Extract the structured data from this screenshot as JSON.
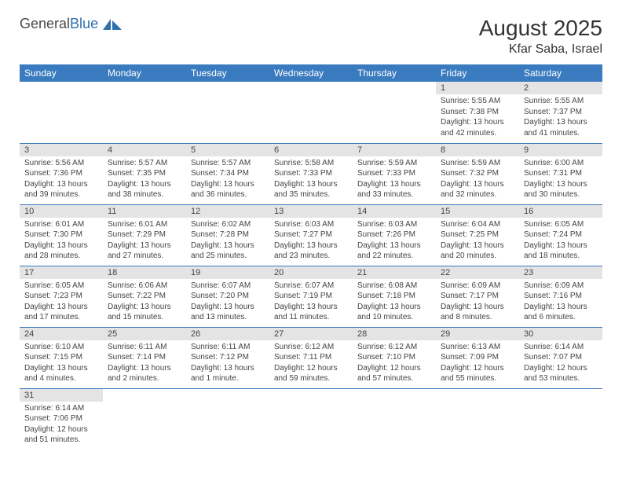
{
  "logo": {
    "brand_part1": "General",
    "brand_part2": "Blue"
  },
  "title": "August 2025",
  "location": "Kfar Saba, Israel",
  "colors": {
    "header_bg": "#3a7bbf",
    "header_text": "#ffffff",
    "daynum_bg": "#e4e4e4",
    "border": "#3a7bbf",
    "text": "#444444",
    "logo_gray": "#4a4a4a",
    "logo_blue": "#2f6fab"
  },
  "day_headers": [
    "Sunday",
    "Monday",
    "Tuesday",
    "Wednesday",
    "Thursday",
    "Friday",
    "Saturday"
  ],
  "weeks": [
    [
      {
        "n": "",
        "sr": "",
        "ss": "",
        "dl": ""
      },
      {
        "n": "",
        "sr": "",
        "ss": "",
        "dl": ""
      },
      {
        "n": "",
        "sr": "",
        "ss": "",
        "dl": ""
      },
      {
        "n": "",
        "sr": "",
        "ss": "",
        "dl": ""
      },
      {
        "n": "",
        "sr": "",
        "ss": "",
        "dl": ""
      },
      {
        "n": "1",
        "sr": "Sunrise: 5:55 AM",
        "ss": "Sunset: 7:38 PM",
        "dl": "Daylight: 13 hours and 42 minutes."
      },
      {
        "n": "2",
        "sr": "Sunrise: 5:55 AM",
        "ss": "Sunset: 7:37 PM",
        "dl": "Daylight: 13 hours and 41 minutes."
      }
    ],
    [
      {
        "n": "3",
        "sr": "Sunrise: 5:56 AM",
        "ss": "Sunset: 7:36 PM",
        "dl": "Daylight: 13 hours and 39 minutes."
      },
      {
        "n": "4",
        "sr": "Sunrise: 5:57 AM",
        "ss": "Sunset: 7:35 PM",
        "dl": "Daylight: 13 hours and 38 minutes."
      },
      {
        "n": "5",
        "sr": "Sunrise: 5:57 AM",
        "ss": "Sunset: 7:34 PM",
        "dl": "Daylight: 13 hours and 36 minutes."
      },
      {
        "n": "6",
        "sr": "Sunrise: 5:58 AM",
        "ss": "Sunset: 7:33 PM",
        "dl": "Daylight: 13 hours and 35 minutes."
      },
      {
        "n": "7",
        "sr": "Sunrise: 5:59 AM",
        "ss": "Sunset: 7:33 PM",
        "dl": "Daylight: 13 hours and 33 minutes."
      },
      {
        "n": "8",
        "sr": "Sunrise: 5:59 AM",
        "ss": "Sunset: 7:32 PM",
        "dl": "Daylight: 13 hours and 32 minutes."
      },
      {
        "n": "9",
        "sr": "Sunrise: 6:00 AM",
        "ss": "Sunset: 7:31 PM",
        "dl": "Daylight: 13 hours and 30 minutes."
      }
    ],
    [
      {
        "n": "10",
        "sr": "Sunrise: 6:01 AM",
        "ss": "Sunset: 7:30 PM",
        "dl": "Daylight: 13 hours and 28 minutes."
      },
      {
        "n": "11",
        "sr": "Sunrise: 6:01 AM",
        "ss": "Sunset: 7:29 PM",
        "dl": "Daylight: 13 hours and 27 minutes."
      },
      {
        "n": "12",
        "sr": "Sunrise: 6:02 AM",
        "ss": "Sunset: 7:28 PM",
        "dl": "Daylight: 13 hours and 25 minutes."
      },
      {
        "n": "13",
        "sr": "Sunrise: 6:03 AM",
        "ss": "Sunset: 7:27 PM",
        "dl": "Daylight: 13 hours and 23 minutes."
      },
      {
        "n": "14",
        "sr": "Sunrise: 6:03 AM",
        "ss": "Sunset: 7:26 PM",
        "dl": "Daylight: 13 hours and 22 minutes."
      },
      {
        "n": "15",
        "sr": "Sunrise: 6:04 AM",
        "ss": "Sunset: 7:25 PM",
        "dl": "Daylight: 13 hours and 20 minutes."
      },
      {
        "n": "16",
        "sr": "Sunrise: 6:05 AM",
        "ss": "Sunset: 7:24 PM",
        "dl": "Daylight: 13 hours and 18 minutes."
      }
    ],
    [
      {
        "n": "17",
        "sr": "Sunrise: 6:05 AM",
        "ss": "Sunset: 7:23 PM",
        "dl": "Daylight: 13 hours and 17 minutes."
      },
      {
        "n": "18",
        "sr": "Sunrise: 6:06 AM",
        "ss": "Sunset: 7:22 PM",
        "dl": "Daylight: 13 hours and 15 minutes."
      },
      {
        "n": "19",
        "sr": "Sunrise: 6:07 AM",
        "ss": "Sunset: 7:20 PM",
        "dl": "Daylight: 13 hours and 13 minutes."
      },
      {
        "n": "20",
        "sr": "Sunrise: 6:07 AM",
        "ss": "Sunset: 7:19 PM",
        "dl": "Daylight: 13 hours and 11 minutes."
      },
      {
        "n": "21",
        "sr": "Sunrise: 6:08 AM",
        "ss": "Sunset: 7:18 PM",
        "dl": "Daylight: 13 hours and 10 minutes."
      },
      {
        "n": "22",
        "sr": "Sunrise: 6:09 AM",
        "ss": "Sunset: 7:17 PM",
        "dl": "Daylight: 13 hours and 8 minutes."
      },
      {
        "n": "23",
        "sr": "Sunrise: 6:09 AM",
        "ss": "Sunset: 7:16 PM",
        "dl": "Daylight: 13 hours and 6 minutes."
      }
    ],
    [
      {
        "n": "24",
        "sr": "Sunrise: 6:10 AM",
        "ss": "Sunset: 7:15 PM",
        "dl": "Daylight: 13 hours and 4 minutes."
      },
      {
        "n": "25",
        "sr": "Sunrise: 6:11 AM",
        "ss": "Sunset: 7:14 PM",
        "dl": "Daylight: 13 hours and 2 minutes."
      },
      {
        "n": "26",
        "sr": "Sunrise: 6:11 AM",
        "ss": "Sunset: 7:12 PM",
        "dl": "Daylight: 13 hours and 1 minute."
      },
      {
        "n": "27",
        "sr": "Sunrise: 6:12 AM",
        "ss": "Sunset: 7:11 PM",
        "dl": "Daylight: 12 hours and 59 minutes."
      },
      {
        "n": "28",
        "sr": "Sunrise: 6:12 AM",
        "ss": "Sunset: 7:10 PM",
        "dl": "Daylight: 12 hours and 57 minutes."
      },
      {
        "n": "29",
        "sr": "Sunrise: 6:13 AM",
        "ss": "Sunset: 7:09 PM",
        "dl": "Daylight: 12 hours and 55 minutes."
      },
      {
        "n": "30",
        "sr": "Sunrise: 6:14 AM",
        "ss": "Sunset: 7:07 PM",
        "dl": "Daylight: 12 hours and 53 minutes."
      }
    ],
    [
      {
        "n": "31",
        "sr": "Sunrise: 6:14 AM",
        "ss": "Sunset: 7:06 PM",
        "dl": "Daylight: 12 hours and 51 minutes."
      },
      {
        "n": "",
        "sr": "",
        "ss": "",
        "dl": ""
      },
      {
        "n": "",
        "sr": "",
        "ss": "",
        "dl": ""
      },
      {
        "n": "",
        "sr": "",
        "ss": "",
        "dl": ""
      },
      {
        "n": "",
        "sr": "",
        "ss": "",
        "dl": ""
      },
      {
        "n": "",
        "sr": "",
        "ss": "",
        "dl": ""
      },
      {
        "n": "",
        "sr": "",
        "ss": "",
        "dl": ""
      }
    ]
  ]
}
